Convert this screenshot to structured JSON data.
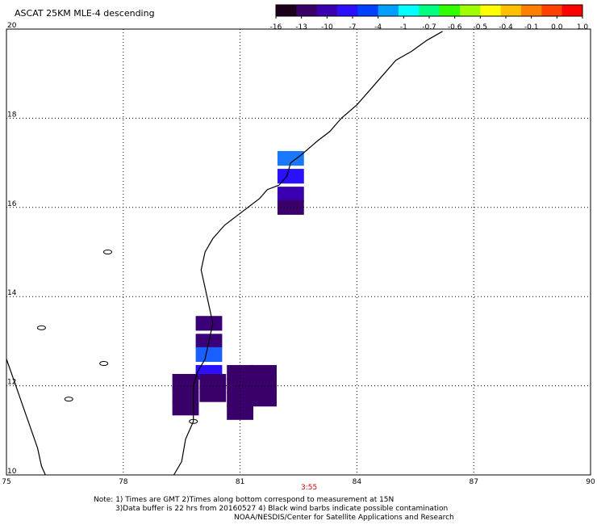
{
  "title": "ASCAT 25KM MLE-4 descending",
  "colorbar": {
    "colors": [
      "#1a001a",
      "#3a006a",
      "#3a00b0",
      "#2a10ff",
      "#0040ff",
      "#00a0ff",
      "#00ffff",
      "#00ff80",
      "#30ff00",
      "#a0ff00",
      "#ffff00",
      "#ffc000",
      "#ff8000",
      "#ff4000",
      "#ff0000"
    ],
    "ticks": [
      "-16",
      "-13",
      "-10",
      "-7",
      "-4",
      "-1",
      "-0.7",
      "-0.6",
      "-0.5",
      "-0.4",
      "-0.1",
      "0.0",
      "1.0"
    ]
  },
  "map": {
    "lon_range": [
      75,
      90
    ],
    "lat_range": [
      10,
      20
    ],
    "lon_ticks": [
      "75",
      "78",
      "81",
      "84",
      "87",
      "90"
    ],
    "lat_ticks": [
      "20",
      "18",
      "16",
      "14",
      "12",
      "10"
    ],
    "grid": true
  },
  "time_label": "3:55",
  "notes": {
    "line1": "Note: 1) Times are GMT 2)Times along bottom correspond to measurement at 15N",
    "line2": "3)Data buffer is 22 hrs from 20160527 4) Black wind barbs indicate possible contamination",
    "line3": "NOAA/NESDIS/Center for Satellite Applications and Research"
  },
  "cells": [
    {
      "lon": 82.3,
      "lat": 17.1,
      "color": "#1a78ff"
    },
    {
      "lon": 82.3,
      "lat": 16.7,
      "color": "#2a10ff"
    },
    {
      "lon": 82.3,
      "lat": 16.3,
      "color": "#3a00b0"
    },
    {
      "lon": 82.3,
      "lat": 16.0,
      "color": "#3a006a"
    },
    {
      "lon": 80.2,
      "lat": 13.4,
      "color": "#3a0078"
    },
    {
      "lon": 80.2,
      "lat": 13.0,
      "color": "#3a0078"
    },
    {
      "lon": 80.2,
      "lat": 12.7,
      "color": "#1a60ff"
    },
    {
      "lon": 80.2,
      "lat": 12.3,
      "color": "#2a10ff"
    },
    {
      "lon": 79.6,
      "lat": 12.1,
      "color": "#3a006a"
    },
    {
      "lon": 79.6,
      "lat": 11.8,
      "color": "#3a006a"
    },
    {
      "lon": 79.6,
      "lat": 11.5,
      "color": "#3a006a"
    },
    {
      "lon": 80.3,
      "lat": 12.1,
      "color": "#3a006a"
    },
    {
      "lon": 80.3,
      "lat": 11.8,
      "color": "#3a006a"
    },
    {
      "lon": 81.0,
      "lat": 12.3,
      "color": "#3a006a"
    },
    {
      "lon": 81.0,
      "lat": 12.0,
      "color": "#3a006a"
    },
    {
      "lon": 81.0,
      "lat": 11.7,
      "color": "#3a006a"
    },
    {
      "lon": 81.0,
      "lat": 11.4,
      "color": "#3a006a"
    },
    {
      "lon": 81.6,
      "lat": 12.3,
      "color": "#3a006a"
    },
    {
      "lon": 81.6,
      "lat": 12.0,
      "color": "#3a006a"
    },
    {
      "lon": 81.6,
      "lat": 11.7,
      "color": "#3a006a"
    }
  ],
  "coastline": [
    [
      86.2,
      19.95
    ],
    [
      85.8,
      19.75
    ],
    [
      85.4,
      19.5
    ],
    [
      85.0,
      19.3
    ],
    [
      84.8,
      19.1
    ],
    [
      84.6,
      18.9
    ],
    [
      84.3,
      18.6
    ],
    [
      84.0,
      18.3
    ],
    [
      83.6,
      18.0
    ],
    [
      83.3,
      17.7
    ],
    [
      83.0,
      17.5
    ],
    [
      82.6,
      17.2
    ],
    [
      82.3,
      17.0
    ],
    [
      82.2,
      16.7
    ],
    [
      82.0,
      16.5
    ],
    [
      81.7,
      16.4
    ],
    [
      81.5,
      16.2
    ],
    [
      81.2,
      16.0
    ],
    [
      80.9,
      15.8
    ],
    [
      80.6,
      15.6
    ],
    [
      80.3,
      15.3
    ],
    [
      80.1,
      15.0
    ],
    [
      80.0,
      14.6
    ],
    [
      80.1,
      14.2
    ],
    [
      80.2,
      13.8
    ],
    [
      80.3,
      13.4
    ],
    [
      80.2,
      13.0
    ],
    [
      80.1,
      12.6
    ],
    [
      79.9,
      12.3
    ],
    [
      79.8,
      12.0
    ],
    [
      79.8,
      11.6
    ],
    [
      79.8,
      11.2
    ],
    [
      79.6,
      10.8
    ],
    [
      79.5,
      10.3
    ],
    [
      79.3,
      10.0
    ]
  ],
  "westcoast": [
    [
      75.0,
      12.6
    ],
    [
      75.2,
      12.1
    ],
    [
      75.4,
      11.6
    ],
    [
      75.6,
      11.1
    ],
    [
      75.8,
      10.6
    ],
    [
      75.9,
      10.2
    ],
    [
      76.0,
      10.0
    ]
  ]
}
